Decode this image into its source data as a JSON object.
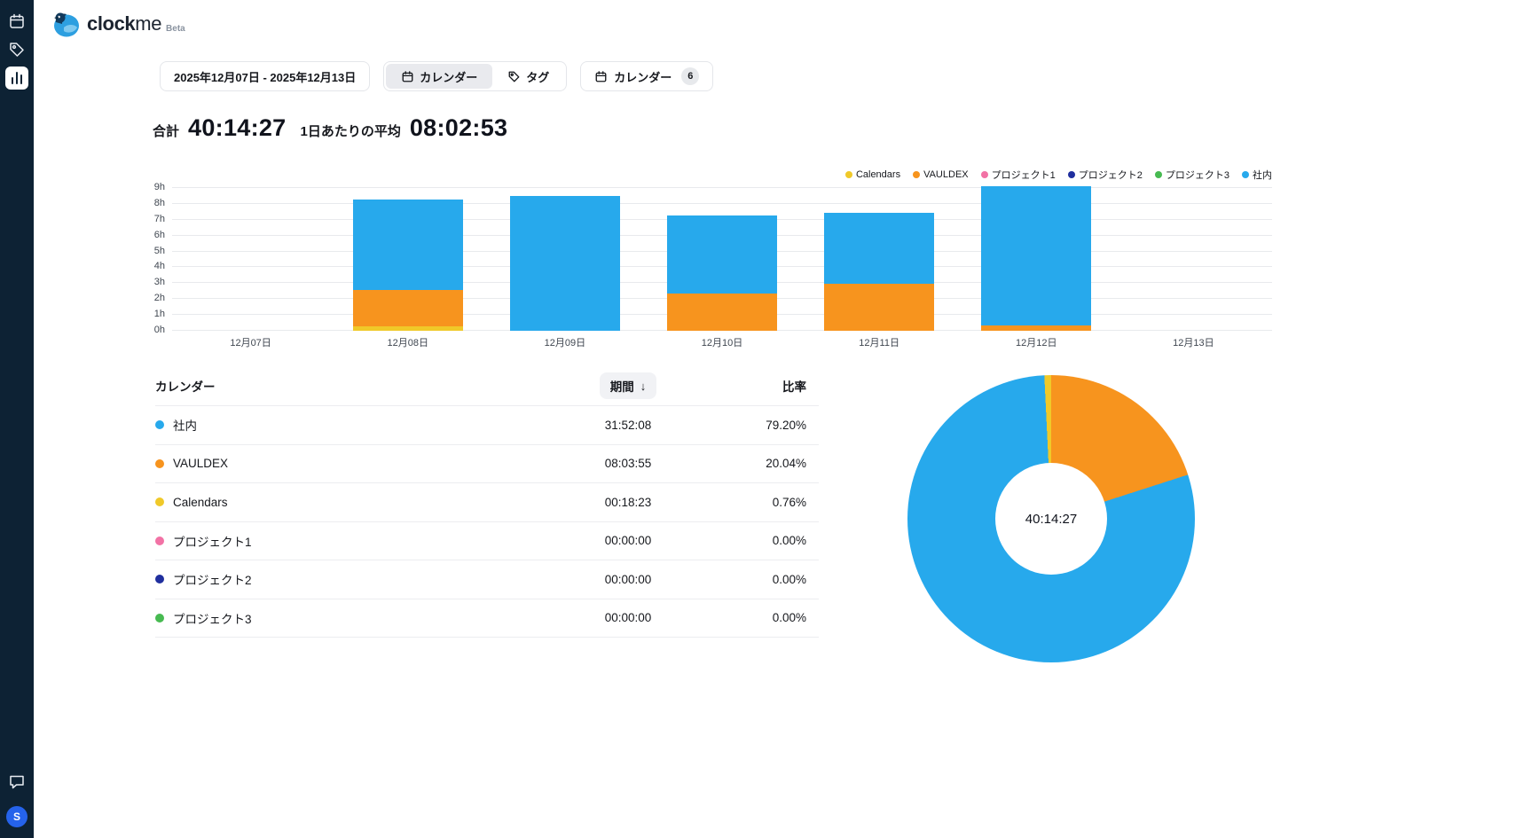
{
  "app": {
    "logo_primary": "clock",
    "logo_secondary": "me",
    "beta_label": "Beta"
  },
  "sidebar": {
    "items": [
      {
        "name": "calendar-icon",
        "active": false
      },
      {
        "name": "tag-icon",
        "active": false
      },
      {
        "name": "bar-chart-icon",
        "active": true
      }
    ],
    "feedback_icon": "chat-bubble-icon",
    "avatar_initial": "S"
  },
  "toolbar": {
    "date_range": "2025年12月07日 - 2025年12月13日",
    "segment_calendar": "カレンダー",
    "segment_tag": "タグ",
    "calendar_filter": "カレンダー",
    "calendar_filter_count": "6"
  },
  "summary": {
    "total_label": "合計",
    "total_value": "40:14:27",
    "avg_label": "1日あたりの平均",
    "avg_value": "08:02:53"
  },
  "chart_data": [
    {
      "type": "bar",
      "stacked": true,
      "title": "",
      "xlabel": "",
      "ylabel": "",
      "grid": true,
      "legend_position": "top-right",
      "categories": [
        "12月07日",
        "12月08日",
        "12月09日",
        "12月10日",
        "12月11日",
        "12月12日",
        "12月13日"
      ],
      "series": [
        {
          "name": "Calendars",
          "color": "#F0C929",
          "values": [
            0,
            0.3,
            0,
            0,
            0,
            0,
            0
          ]
        },
        {
          "name": "VAULDEX",
          "color": "#F7941E",
          "values": [
            0,
            2.3,
            0,
            2.35,
            2.95,
            0.35,
            0
          ]
        },
        {
          "name": "プロジェクト1",
          "color": "#F272A5",
          "values": [
            0,
            0,
            0,
            0,
            0,
            0,
            0
          ]
        },
        {
          "name": "プロジェクト2",
          "color": "#202F9E",
          "values": [
            0,
            0,
            0,
            0,
            0,
            0,
            0
          ]
        },
        {
          "name": "プロジェクト3",
          "color": "#47BA51",
          "values": [
            0,
            0,
            0,
            0,
            0,
            0,
            0
          ]
        },
        {
          "name": "社内",
          "color": "#27A9EC",
          "values": [
            0,
            5.7,
            8.5,
            4.9,
            4.5,
            8.75,
            0
          ]
        }
      ],
      "yticks": [
        "0h",
        "1h",
        "2h",
        "3h",
        "4h",
        "5h",
        "6h",
        "7h",
        "8h",
        "9h"
      ],
      "ylim": [
        0,
        9
      ]
    },
    {
      "type": "pie",
      "subtype": "donut",
      "center_label": "40:14:27",
      "segments": [
        {
          "name": "VAULDEX",
          "color": "#F7941E",
          "percent": 20.04
        },
        {
          "name": "社内",
          "color": "#27A9EC",
          "percent": 79.2
        },
        {
          "name": "Calendars",
          "color": "#F0C929",
          "percent": 0.76
        }
      ]
    }
  ],
  "table": {
    "col_calendar": "カレンダー",
    "col_duration": "期間",
    "sort_icon": "arrow-down",
    "sort_arrow_glyph": "↓",
    "col_ratio": "比率",
    "rows": [
      {
        "name": "社内",
        "color": "#27A9EC",
        "duration": "31:52:08",
        "ratio": "79.20%"
      },
      {
        "name": "VAULDEX",
        "color": "#F7941E",
        "duration": "08:03:55",
        "ratio": "20.04%"
      },
      {
        "name": "Calendars",
        "color": "#F0C929",
        "duration": "00:18:23",
        "ratio": "0.76%"
      },
      {
        "name": "プロジェクト1",
        "color": "#F272A5",
        "duration": "00:00:00",
        "ratio": "0.00%"
      },
      {
        "name": "プロジェクト2",
        "color": "#202F9E",
        "duration": "00:00:00",
        "ratio": "0.00%"
      },
      {
        "name": "プロジェクト3",
        "color": "#47BA51",
        "duration": "00:00:00",
        "ratio": "0.00%"
      }
    ]
  }
}
